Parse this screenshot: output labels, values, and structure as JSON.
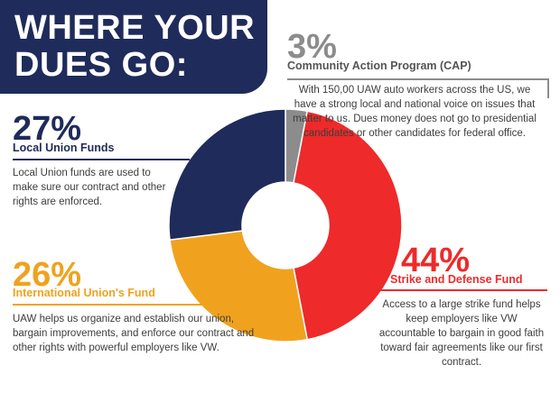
{
  "header": {
    "title_line1": "WHERE YOUR",
    "title_line2": "DUES GO:"
  },
  "segments": {
    "cap": {
      "percent_label": "3%",
      "name": "Community Action Program (CAP)",
      "description": "With 150,00 UAW auto workers across the US, we have a strong local and national voice on issues that matter to us. Dues money does not go to presidential candidates or other candidates for federal office."
    },
    "local": {
      "percent_label": "27%",
      "name": "Local Union Funds",
      "description": "Local Union funds are used to make sure our contract and other rights are enforced."
    },
    "international": {
      "percent_label": "26%",
      "name": "International Union's Fund",
      "description": "UAW helps us organize and establish our union, bargain improvements, and enforce our contract and other rights with powerful employers like VW."
    },
    "strike": {
      "percent_label": "44%",
      "name": "Strike and Defense Fund",
      "description": "Access to a large strike fund helps keep employers like VW accountable to bargain in good faith toward fair agreements like our first contract."
    }
  },
  "colors": {
    "navy": "#1f2b5a",
    "red": "#ee2a2a",
    "gold": "#f0a21f",
    "gray": "#8c8c8c"
  },
  "chart_data": {
    "type": "pie",
    "categories": [
      "Community Action Program (CAP)",
      "Strike and Defense Fund",
      "International Union's Fund",
      "Local Union Funds"
    ],
    "values": [
      3,
      44,
      26,
      27
    ],
    "colors": [
      "#8c8c8c",
      "#ee2a2a",
      "#f0a21f",
      "#1f2b5a"
    ],
    "title": "WHERE YOUR DUES GO:",
    "donut": true
  }
}
